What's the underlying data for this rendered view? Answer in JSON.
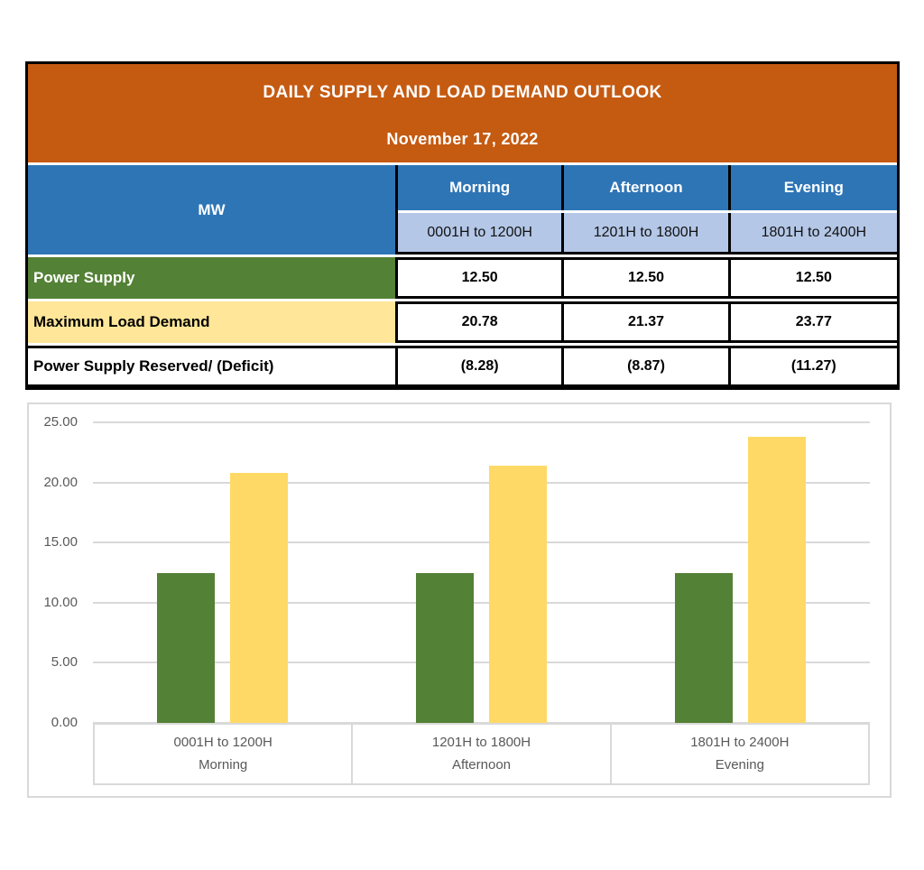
{
  "header": {
    "title": "DAILY SUPPLY AND LOAD DEMAND OUTLOOK",
    "date": "November 17, 2022"
  },
  "table": {
    "unit_label": "MW",
    "periods": [
      {
        "name": "Morning",
        "hours": "0001H to 1200H"
      },
      {
        "name": "Afternoon",
        "hours": "1201H to 1800H"
      },
      {
        "name": "Evening",
        "hours": "1801H to 2400H"
      }
    ],
    "rows": [
      {
        "label": "Power Supply",
        "values": [
          "12.50",
          "12.50",
          "12.50"
        ]
      },
      {
        "label": "Maximum Load Demand",
        "values": [
          "20.78",
          "21.37",
          "23.77"
        ]
      },
      {
        "label": "Power Supply Reserved/ (Deficit)",
        "values": [
          "(8.28)",
          "(8.87)",
          "(11.27)"
        ]
      }
    ]
  },
  "colors": {
    "banner_orange": "#C55A11",
    "header_blue": "#2E75B6",
    "subheader_light_blue": "#B4C7E7",
    "supply_green": "#538135",
    "demand_yellow_row": "#FFE699",
    "demand_yellow_bar": "#FFD966",
    "chart_text_gray": "#595959",
    "gridline_gray": "#D9D9D9"
  },
  "chart_data": {
    "type": "bar",
    "title": "",
    "xlabel": "",
    "ylabel": "",
    "categories": [
      {
        "hours": "0001H to 1200H",
        "period": "Morning"
      },
      {
        "hours": "1201H to 1800H",
        "period": "Afternoon"
      },
      {
        "hours": "1801H to 2400H",
        "period": "Evening"
      }
    ],
    "series": [
      {
        "name": "Power Supply",
        "color": "#538135",
        "values": [
          12.5,
          12.5,
          12.5
        ]
      },
      {
        "name": "Maximum Load Demand",
        "color": "#FFD966",
        "values": [
          20.78,
          21.37,
          23.77
        ]
      }
    ],
    "ylim": [
      0,
      25
    ],
    "ytick_step": 5,
    "yticks": [
      "0.00",
      "5.00",
      "10.00",
      "15.00",
      "20.00",
      "25.00"
    ],
    "grid": true,
    "legend": "none"
  }
}
